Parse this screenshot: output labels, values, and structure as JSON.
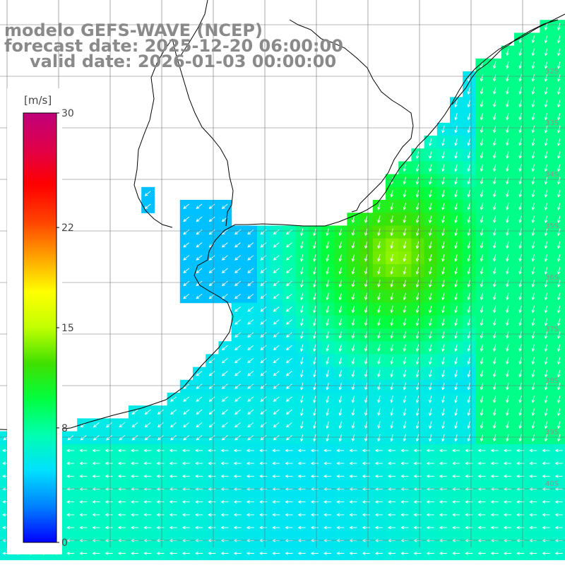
{
  "title": {
    "line1": "modelo GEFS-WAVE (NCEP)",
    "line2": "forecast date: 2025-12-20 06:00:00",
    "line3": "valid date: 2026-01-03 00:00:00"
  },
  "colorbar": {
    "unit": "[m/s]",
    "ticks": [
      "30",
      "22",
      "15",
      "8",
      "0"
    ],
    "tick_values": [
      30,
      22,
      15,
      8,
      0
    ],
    "range": [
      0,
      30
    ],
    "colors": [
      "#0000ff",
      "#0080ff",
      "#00e0ff",
      "#00ffb0",
      "#00ff40",
      "#40e000",
      "#c0ff00",
      "#ffff00",
      "#ffa000",
      "#ff4000",
      "#ff0000",
      "#e0004a",
      "#c0007a"
    ]
  },
  "lat_labels": [
    "32S",
    "33S",
    "34S",
    "35S",
    "36S",
    "37S",
    "38S",
    "39S",
    "40S"
  ],
  "colors": {
    "land": "#ffffff",
    "coast": "#000000",
    "grid": "#707070",
    "arrow": "#ffffff",
    "title": "#8a8a8a"
  }
}
